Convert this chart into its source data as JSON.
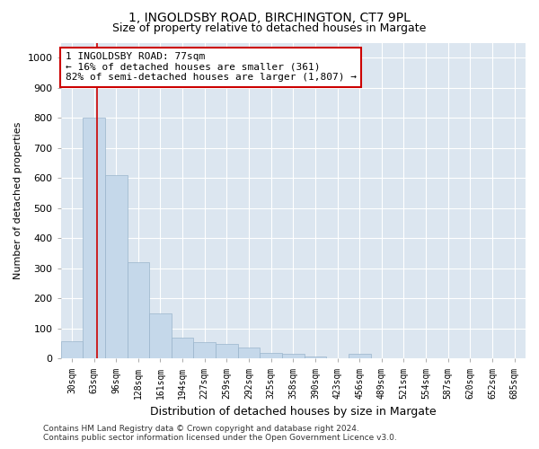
{
  "title_line1": "1, INGOLDSBY ROAD, BIRCHINGTON, CT7 9PL",
  "title_line2": "Size of property relative to detached houses in Margate",
  "xlabel": "Distribution of detached houses by size in Margate",
  "ylabel": "Number of detached properties",
  "footer_line1": "Contains HM Land Registry data © Crown copyright and database right 2024.",
  "footer_line2": "Contains public sector information licensed under the Open Government Licence v3.0.",
  "bins": [
    "30sqm",
    "63sqm",
    "96sqm",
    "128sqm",
    "161sqm",
    "194sqm",
    "227sqm",
    "259sqm",
    "292sqm",
    "325sqm",
    "358sqm",
    "390sqm",
    "423sqm",
    "456sqm",
    "489sqm",
    "521sqm",
    "554sqm",
    "587sqm",
    "620sqm",
    "652sqm",
    "685sqm"
  ],
  "values": [
    58,
    800,
    610,
    320,
    150,
    70,
    55,
    50,
    38,
    20,
    15,
    8,
    0,
    15,
    0,
    0,
    0,
    0,
    0,
    0,
    0
  ],
  "bar_color": "#c5d8ea",
  "bar_edge_color": "#9ab5cc",
  "subject_line_color": "#cc0000",
  "annotation_text": "1 INGOLDSBY ROAD: 77sqm\n← 16% of detached houses are smaller (361)\n82% of semi-detached houses are larger (1,807) →",
  "annotation_box_color": "#ffffff",
  "annotation_box_edge": "#cc0000",
  "ylim": [
    0,
    1050
  ],
  "plot_background": "#dce6f0",
  "title_fontsize": 10,
  "subtitle_fontsize": 9,
  "ylabel_fontsize": 8,
  "xlabel_fontsize": 9,
  "tick_label_fontsize": 7,
  "ytick_fontsize": 8,
  "annotation_fontsize": 8,
  "footer_fontsize": 6.5
}
